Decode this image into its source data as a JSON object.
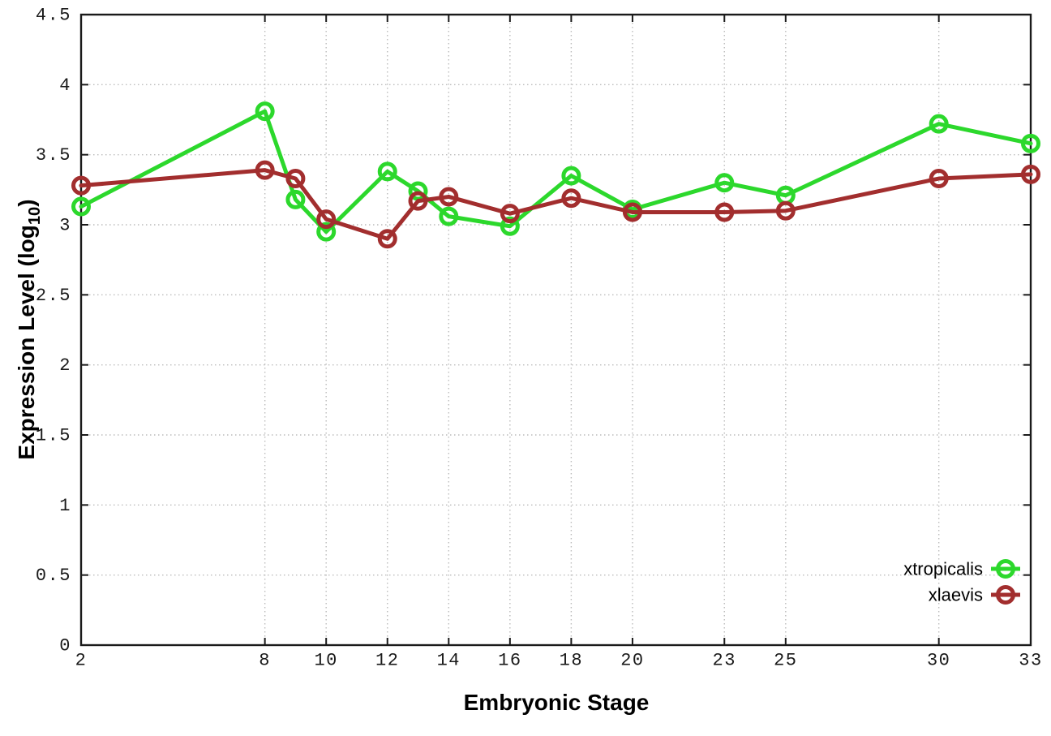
{
  "page": {
    "background": "#ffffff"
  },
  "chart_data": {
    "type": "line",
    "title": "",
    "xlabel": "Embryonic Stage",
    "ylabel": {
      "pre": "Expression Level (log",
      "sub": "10",
      "post": ")"
    },
    "xlim": [
      2,
      33
    ],
    "ylim": [
      0,
      4.5
    ],
    "grid": true,
    "legend_position": "bottom-right",
    "axis_color": "#1a1a1a",
    "grid_color": "#bcbcbc",
    "x_ticks": [
      2,
      8,
      10,
      12,
      14,
      16,
      18,
      20,
      23,
      25,
      30,
      33
    ],
    "y_ticks": [
      0,
      0.5,
      1,
      1.5,
      2,
      2.5,
      3,
      3.5,
      4,
      4.5
    ],
    "x": [
      2,
      8,
      9,
      10,
      12,
      13,
      14,
      16,
      18,
      20,
      23,
      25,
      30,
      33
    ],
    "series": [
      {
        "name": "xtropicalis",
        "color": "#2cd82c",
        "marker": "open-circle",
        "values": [
          3.13,
          3.81,
          3.18,
          2.95,
          3.38,
          3.24,
          3.06,
          2.99,
          3.35,
          3.11,
          3.3,
          3.21,
          3.72,
          3.58
        ]
      },
      {
        "name": "xlaevis",
        "color": "#a22e2e",
        "marker": "open-circle",
        "values": [
          3.28,
          3.39,
          3.33,
          3.04,
          2.9,
          3.17,
          3.2,
          3.08,
          3.19,
          3.09,
          3.09,
          3.1,
          3.33,
          3.36
        ]
      }
    ]
  }
}
